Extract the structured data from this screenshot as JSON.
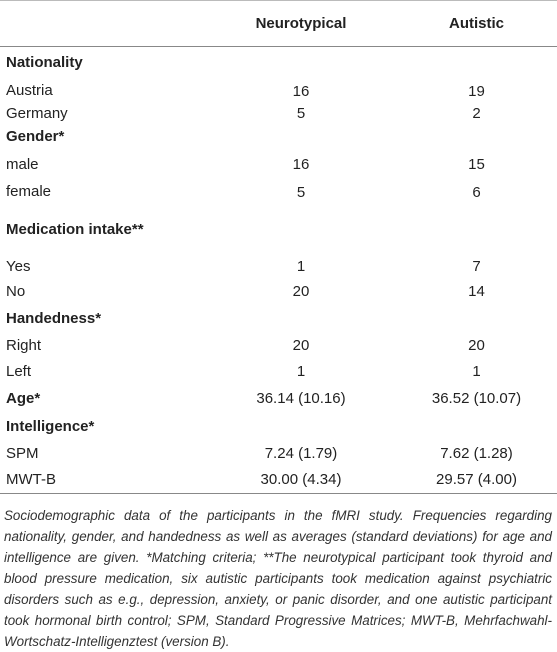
{
  "table": {
    "columns": [
      "Neurotypical",
      "Autistic"
    ],
    "rows": [
      {
        "label": "Nationality",
        "heading": true
      },
      {
        "label": "Austria",
        "values": [
          "16",
          "19"
        ]
      },
      {
        "label": "Germany",
        "values": [
          "5",
          "2"
        ]
      },
      {
        "label": "Gender*",
        "heading": true
      },
      {
        "label": "male",
        "values": [
          "16",
          "15"
        ]
      },
      {
        "label": "female",
        "values": [
          "5",
          "6"
        ]
      },
      {
        "label": "Medication intake**",
        "heading": true
      },
      {
        "label": "Yes",
        "values": [
          "1",
          "7"
        ]
      },
      {
        "label": "No",
        "values": [
          "20",
          "14"
        ]
      },
      {
        "label": "Handedness*",
        "heading": true
      },
      {
        "label": "Right",
        "values": [
          "20",
          "20"
        ]
      },
      {
        "label": "Left",
        "values": [
          "1",
          "1"
        ]
      },
      {
        "label": "Age*",
        "heading": true,
        "values": [
          "36.14 (10.16)",
          "36.52 (10.07)"
        ]
      },
      {
        "label": "Intelligence*",
        "heading": true
      },
      {
        "label": "SPM",
        "values": [
          "7.24 (1.79)",
          "7.62 (1.28)"
        ]
      },
      {
        "label": "MWT-B",
        "values": [
          "30.00 (4.34)",
          "29.57 (4.00)"
        ]
      }
    ],
    "caption": "Sociodemographic data of the participants in the fMRI study. Frequencies regarding nationality, gender, and handedness as well as averages (standard deviations) for age and intelligence are given. *Matching criteria; **The neurotypical participant took thyroid and blood pressure medication, six autistic participants took medication against psychiatric disorders such as e.g., depression, anxiety, or panic disorder, and one autistic participant took hormonal birth control; SPM, Standard Progressive Matrices; MWT-B, Mehrfachwahl-Wortschatz-Intelligenztest (version B)."
  }
}
